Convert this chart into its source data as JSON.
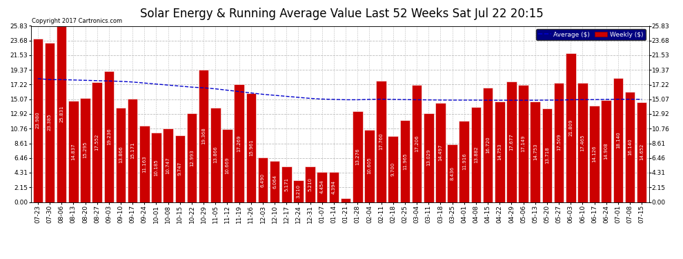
{
  "title": "Solar Energy & Running Average Value Last 52 Weeks Sat Jul 22 20:15",
  "copyright": "Copyright 2017 Cartronics.com",
  "bar_color": "#cc0000",
  "bar_edge_color": "#ffffff",
  "avg_line_color": "#0000cc",
  "avg_line_style": "--",
  "background_color": "#ffffff",
  "grid_color": "#bbbbbb",
  "legend_avg_color": "#0000cc",
  "legend_weekly_color": "#cc0000",
  "ylim": [
    0,
    25.83
  ],
  "yticks": [
    0.0,
    2.15,
    4.31,
    6.46,
    8.61,
    10.76,
    12.92,
    15.07,
    17.22,
    19.37,
    21.53,
    23.68,
    25.83
  ],
  "categories": [
    "07-23",
    "07-30",
    "08-06",
    "08-13",
    "08-20",
    "08-27",
    "09-03",
    "09-10",
    "09-17",
    "09-24",
    "10-01",
    "10-08",
    "10-15",
    "10-22",
    "10-29",
    "11-05",
    "11-12",
    "11-19",
    "11-26",
    "12-03",
    "12-10",
    "12-17",
    "12-24",
    "12-31",
    "01-07",
    "01-14",
    "01-21",
    "01-28",
    "02-04",
    "02-11",
    "02-18",
    "02-25",
    "03-04",
    "03-11",
    "03-18",
    "03-25",
    "04-01",
    "04-08",
    "04-15",
    "04-22",
    "04-29",
    "05-06",
    "05-13",
    "05-20",
    "05-27",
    "06-03",
    "06-10",
    "06-17",
    "06-24",
    "07-01",
    "07-08",
    "07-15"
  ],
  "weekly_values": [
    23.98,
    23.385,
    25.831,
    14.837,
    15.295,
    17.552,
    19.236,
    13.866,
    15.171,
    11.163,
    10.185,
    10.747,
    9.747,
    12.993,
    19.368,
    13.866,
    10.669,
    17.269,
    15.961,
    6.49,
    6.064,
    5.171,
    3.21,
    5.21,
    4.454,
    4.394,
    0.554,
    13.276,
    10.605,
    17.76,
    9.7,
    11.965,
    17.206,
    13.029,
    14.497,
    8.436,
    11.916,
    13.882,
    16.72,
    14.753,
    17.677,
    17.149,
    14.753,
    13.718,
    17.509,
    21.809,
    17.465,
    14.126,
    14.908,
    18.14,
    16.14,
    14.652
  ],
  "avg_values": [
    18.1,
    17.95,
    17.95,
    17.9,
    17.85,
    17.8,
    17.75,
    17.7,
    17.6,
    17.45,
    17.3,
    17.15,
    17.0,
    16.85,
    16.75,
    16.6,
    16.4,
    16.2,
    16.0,
    15.8,
    15.65,
    15.5,
    15.35,
    15.2,
    15.1,
    15.05,
    15.0,
    15.0,
    15.05,
    15.08,
    15.05,
    15.02,
    15.0,
    14.98,
    14.96,
    14.95,
    14.95,
    14.95,
    14.93,
    14.93,
    14.93,
    14.93,
    14.93,
    14.95,
    14.95,
    15.0,
    15.02,
    15.02,
    15.05,
    15.07,
    15.07,
    15.07
  ],
  "title_fontsize": 12,
  "tick_fontsize": 6.5,
  "value_fontsize": 5.0
}
